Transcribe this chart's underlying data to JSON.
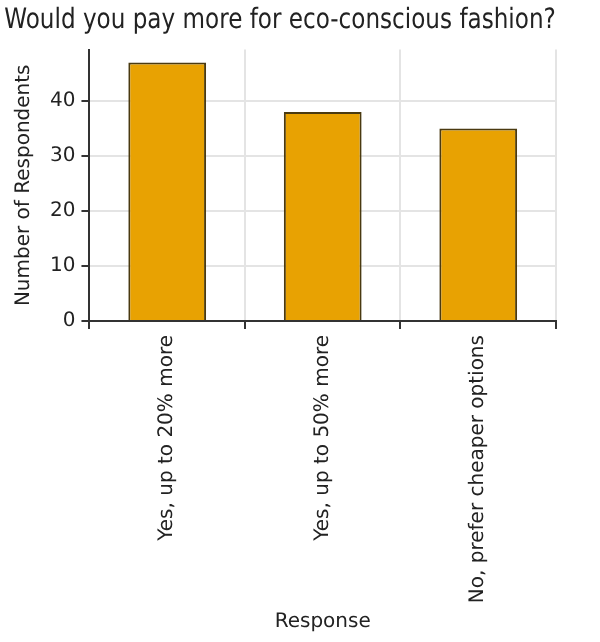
{
  "chart_data": {
    "type": "bar",
    "title": "Would you pay more for eco-conscious fashion?",
    "xlabel": "Response",
    "ylabel": "Number of Respondents",
    "categories": [
      "Yes, up to 20% more",
      "Yes, up to 50% more",
      "No, prefer cheaper options"
    ],
    "values": [
      47,
      38,
      35
    ],
    "color": "#e8a202",
    "ylim": [
      0,
      49.35
    ],
    "yticks": [
      0,
      10,
      20,
      30,
      40
    ],
    "grid": true
  }
}
